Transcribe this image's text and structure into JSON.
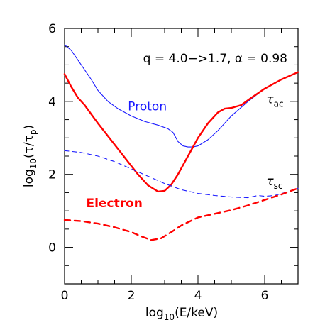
{
  "chart_data": {
    "type": "line",
    "title": "q = 4.0−>1.7, α = 0.98",
    "xlabel": {
      "main": "log",
      "sub": "10",
      "rest": "(E/keV)"
    },
    "ylabel": {
      "main": "log",
      "sub": "10",
      "rest": "(τ/τ",
      "sub2": "p",
      "end": ")"
    },
    "xlim": [
      0,
      7
    ],
    "ylim": [
      -1,
      6
    ],
    "xticks": [
      0,
      2,
      4,
      6
    ],
    "yticks": [
      0,
      2,
      4,
      6
    ],
    "grid": false,
    "annotations": [
      {
        "text": "τ",
        "sub": "ac",
        "x": 6.2,
        "y": 3.95
      },
      {
        "text": "τ",
        "sub": "sc",
        "x": 6.2,
        "y": 1.7
      }
    ],
    "series": [
      {
        "name": "Proton",
        "kind": "acceleration",
        "color": "#1a1aff",
        "dash": "solid",
        "label_x": 2.8,
        "label_y": 3.75,
        "x": [
          0,
          0.2,
          0.5,
          0.8,
          1.0,
          1.3,
          1.6,
          2.0,
          2.4,
          2.8,
          3.1,
          3.25,
          3.4,
          3.55,
          3.7,
          3.85,
          4.0,
          4.3,
          4.6,
          5.0,
          5.5,
          6.0,
          6.5,
          7.0
        ],
        "y": [
          5.55,
          5.4,
          5.0,
          4.6,
          4.3,
          4.0,
          3.8,
          3.6,
          3.45,
          3.35,
          3.25,
          3.15,
          2.9,
          2.78,
          2.75,
          2.75,
          2.78,
          2.95,
          3.2,
          3.6,
          4.0,
          4.35,
          4.6,
          4.8
        ]
      },
      {
        "name": "Electron",
        "kind": "acceleration",
        "color": "#ff0000",
        "dash": "solid",
        "label_x": 1.2,
        "label_y": 1.1,
        "x": [
          0,
          0.2,
          0.4,
          0.6,
          0.8,
          1.0,
          1.3,
          1.6,
          1.9,
          2.2,
          2.5,
          2.8,
          3.0,
          3.2,
          3.4,
          3.7,
          4.0,
          4.3,
          4.6,
          4.8,
          5.0,
          5.3,
          5.6,
          6.0,
          6.5,
          7.0
        ],
        "y": [
          4.75,
          4.4,
          4.1,
          3.9,
          3.65,
          3.4,
          3.05,
          2.7,
          2.35,
          2.0,
          1.7,
          1.53,
          1.55,
          1.72,
          2.0,
          2.5,
          3.0,
          3.4,
          3.7,
          3.8,
          3.82,
          3.9,
          4.1,
          4.35,
          4.6,
          4.8
        ]
      },
      {
        "name": "",
        "kind": "scattering",
        "color": "#1a1aff",
        "dash": "dashed",
        "x": [
          0,
          0.5,
          1.0,
          1.5,
          2.0,
          2.5,
          3.0,
          3.5,
          4.0,
          4.5,
          5.0,
          5.5,
          5.8,
          6.0,
          6.3,
          6.6,
          7.0
        ],
        "y": [
          2.65,
          2.6,
          2.5,
          2.35,
          2.15,
          1.95,
          1.75,
          1.58,
          1.48,
          1.42,
          1.38,
          1.36,
          1.42,
          1.4,
          1.42,
          1.5,
          1.62
        ]
      },
      {
        "name": "",
        "kind": "scattering",
        "color": "#ff0000",
        "dash": "dashed",
        "x": [
          0,
          0.5,
          1.0,
          1.5,
          2.0,
          2.3,
          2.6,
          2.9,
          3.2,
          3.5,
          4.0,
          4.5,
          5.0,
          5.5,
          6.0,
          6.5,
          7.0
        ],
        "y": [
          0.75,
          0.72,
          0.65,
          0.55,
          0.42,
          0.3,
          0.2,
          0.25,
          0.42,
          0.6,
          0.82,
          0.92,
          1.02,
          1.15,
          1.3,
          1.45,
          1.62
        ]
      }
    ]
  }
}
